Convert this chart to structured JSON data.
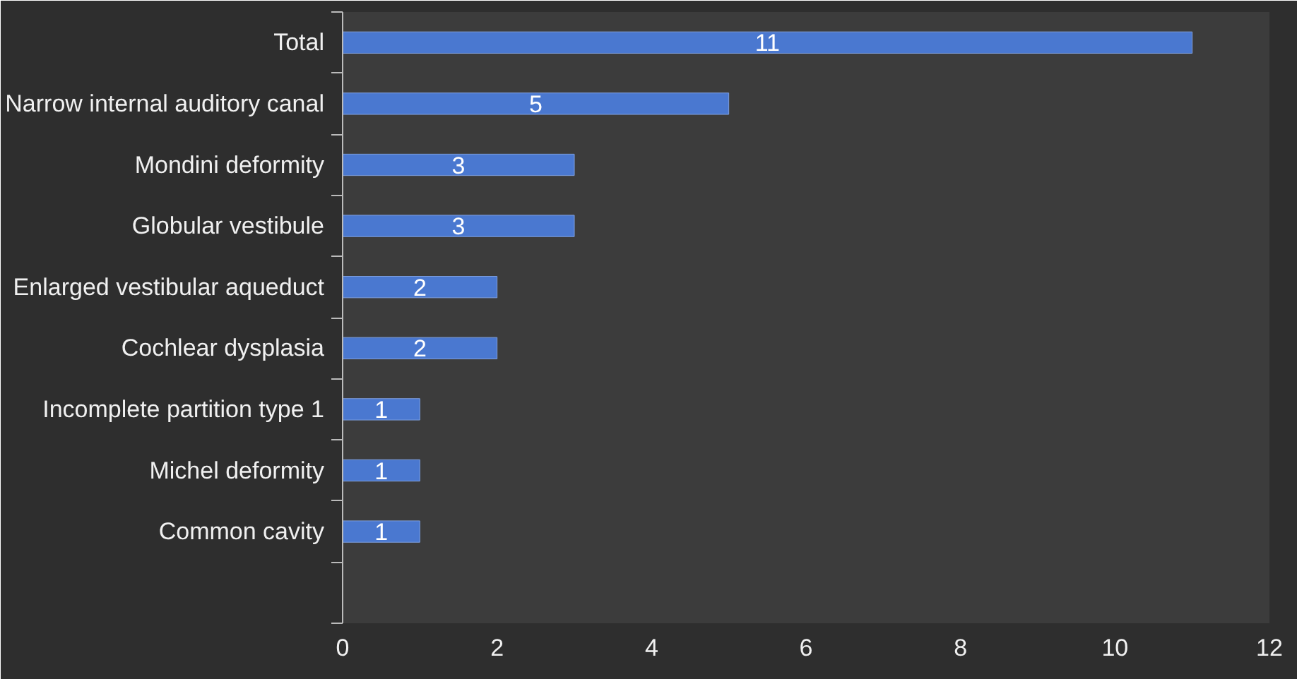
{
  "chart_data": {
    "type": "bar",
    "orientation": "horizontal",
    "categories": [
      "Total",
      "Narrow internal auditory canal",
      "Mondini deformity",
      "Globular vestibule",
      "Enlarged vestibular aqueduct",
      "Cochlear dysplasia",
      "Incomplete partition type 1",
      "Michel deformity",
      "Common cavity",
      null
    ],
    "values": [
      11,
      5,
      3,
      3,
      2,
      2,
      1,
      1,
      1,
      null
    ],
    "color": "#4a78d0",
    "xlim": [
      0,
      12
    ],
    "xticks": [
      0,
      2,
      4,
      6,
      8,
      10,
      12
    ],
    "data_labels": true,
    "grid": false
  }
}
